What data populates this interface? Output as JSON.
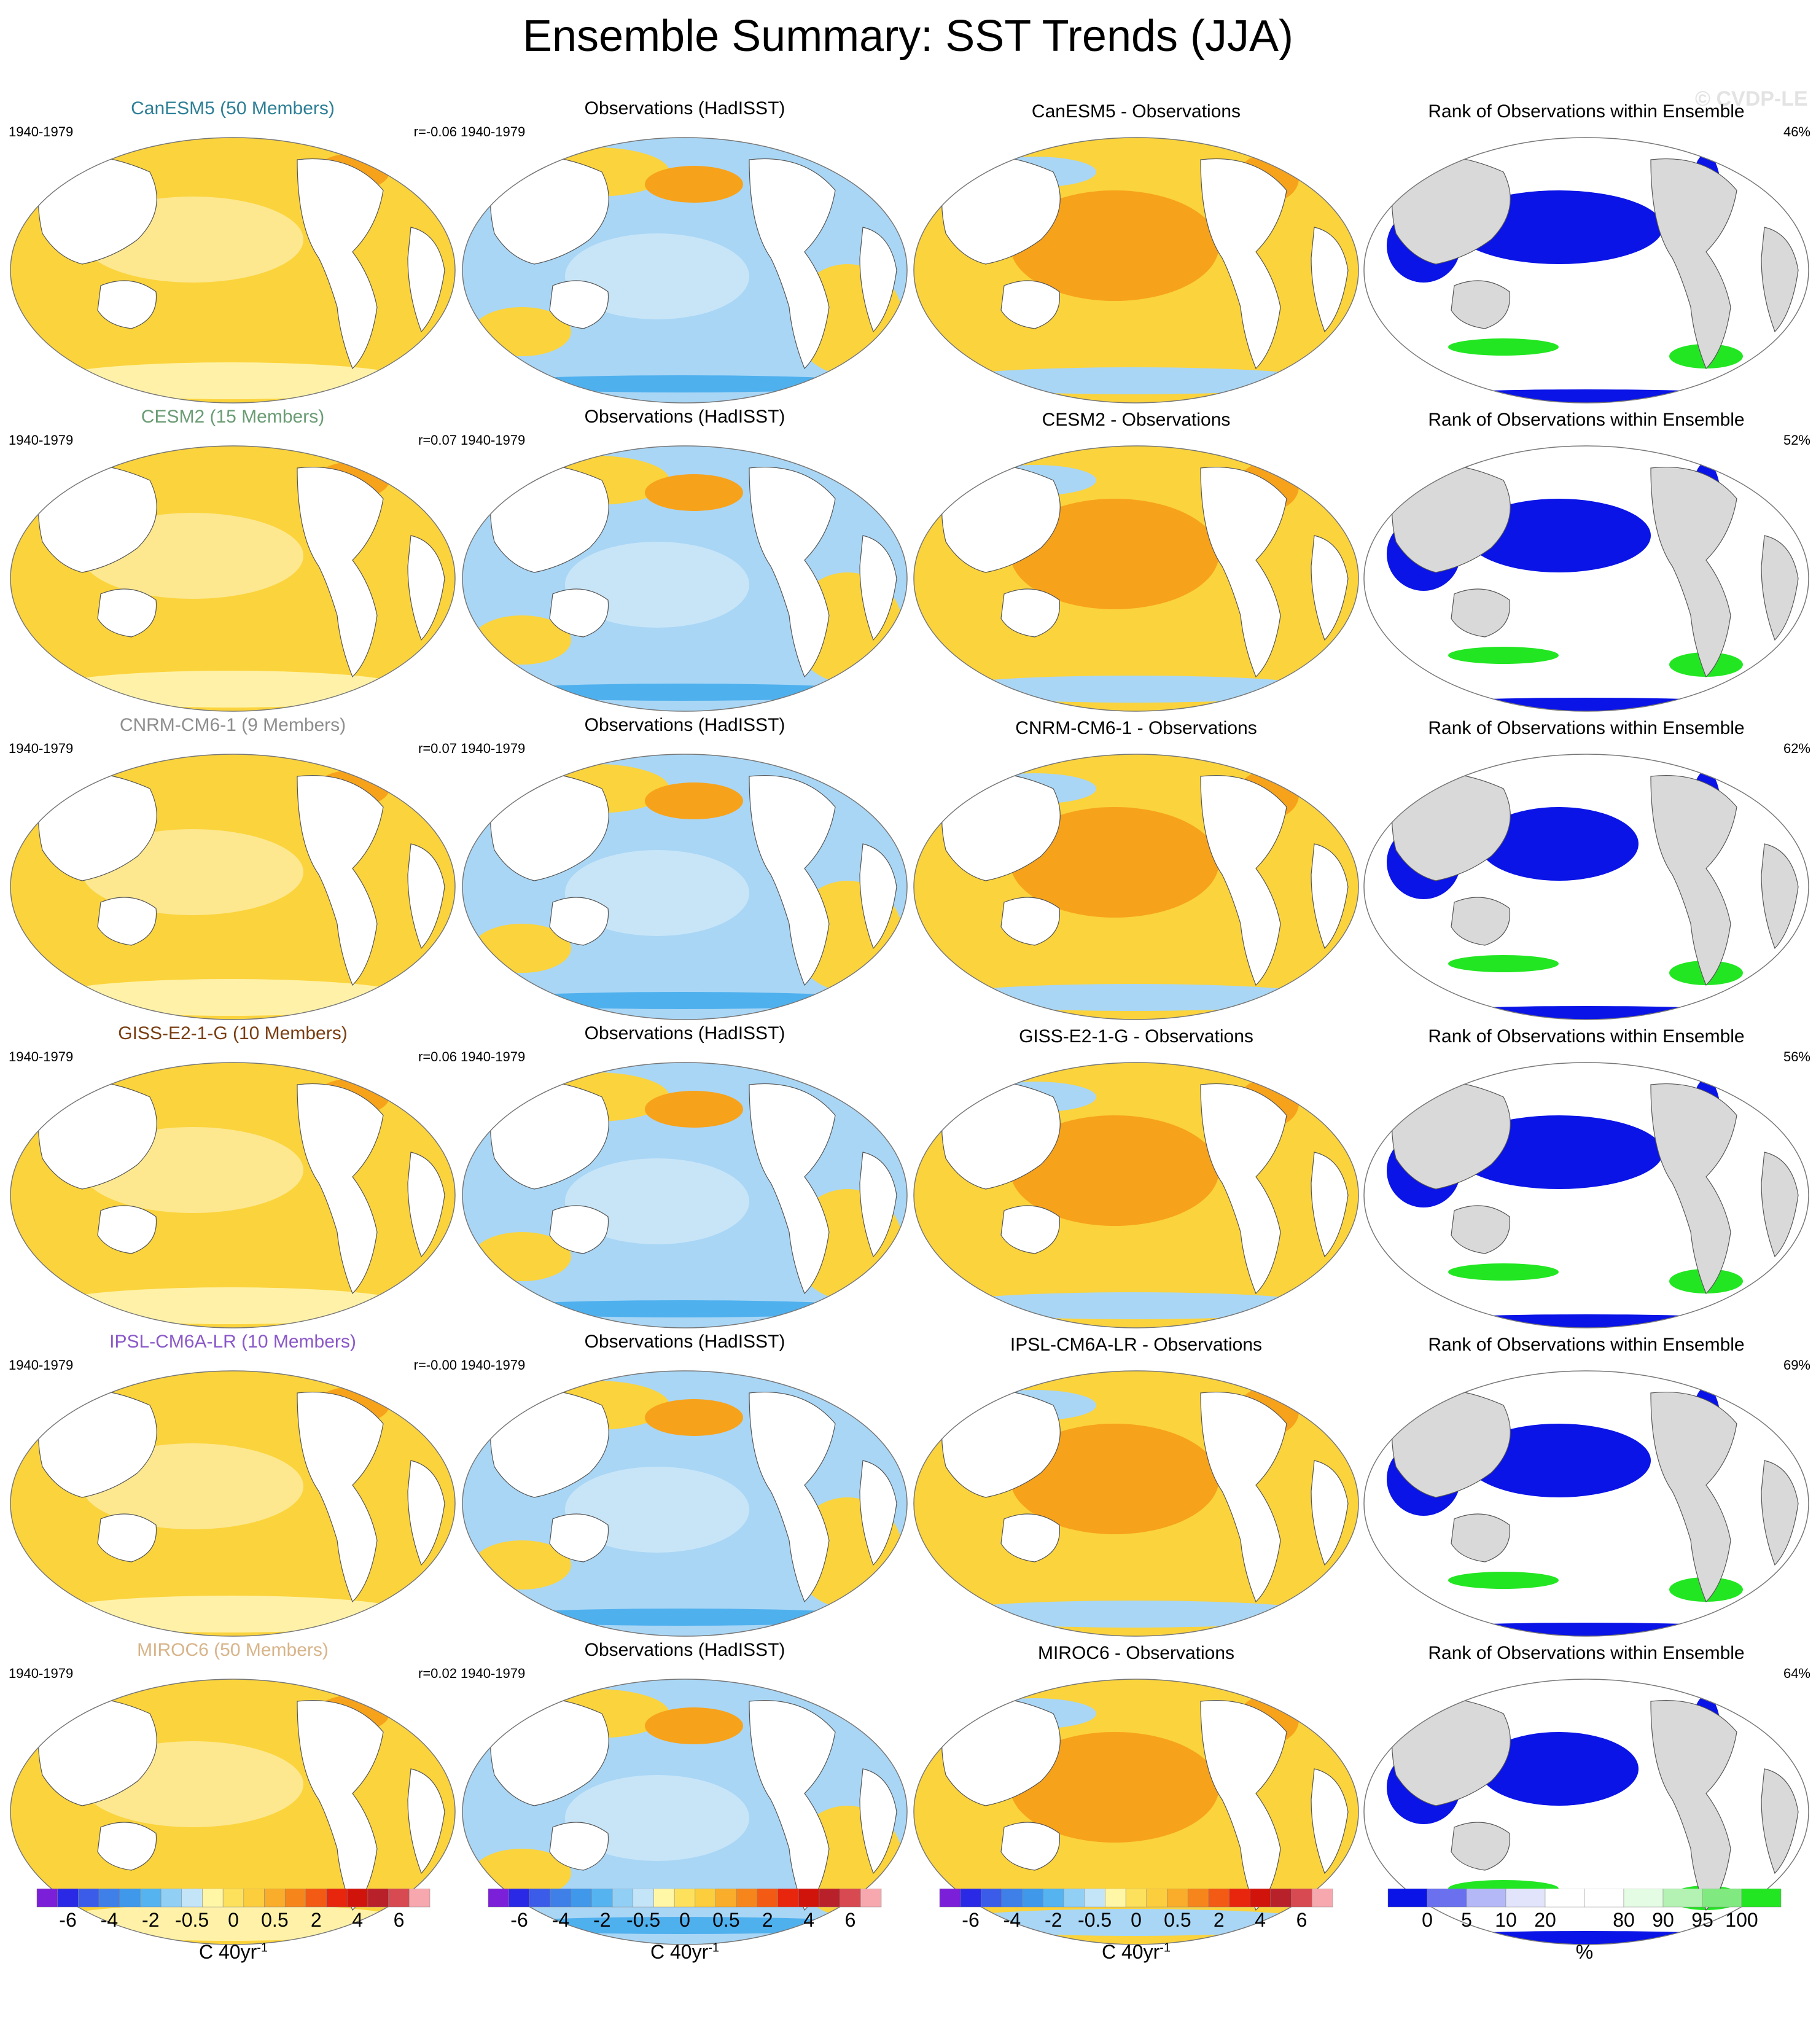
{
  "title": "Ensemble Summary: SST Trends (JJA)",
  "watermark": "© CVDP-LE",
  "period": "1940-1979",
  "colors": {
    "land_model": "#ffffff",
    "land_rank": "#d9d9d9",
    "warm": "#fbd33c",
    "warm_strong": "#f7a21b",
    "cool": "#a9d6f5",
    "cool_strong": "#4fb0ee",
    "rank_low": "#0a14e6",
    "rank_high": "#22e622"
  },
  "rows": [
    {
      "model": "CanESM5 (50 Members)",
      "model_color": "#2e7f96",
      "corr": "r=-0.06",
      "obs_title": "Observations (HadISST)",
      "diff_title": "CanESM5 - Observations",
      "rank_title": "Rank of Observations within Ensemble",
      "rank_pct": "46%"
    },
    {
      "model": "CESM2 (15 Members)",
      "model_color": "#6a9c74",
      "corr": "r=0.07",
      "obs_title": "Observations (HadISST)",
      "diff_title": "CESM2 - Observations",
      "rank_title": "Rank of Observations within Ensemble",
      "rank_pct": "52%"
    },
    {
      "model": "CNRM-CM6-1 (9 Members)",
      "model_color": "#8e8e8e",
      "corr": "r=0.07",
      "obs_title": "Observations (HadISST)",
      "diff_title": "CNRM-CM6-1 - Observations",
      "rank_title": "Rank of Observations within Ensemble",
      "rank_pct": "62%"
    },
    {
      "model": "GISS-E2-1-G (10 Members)",
      "model_color": "#7a3e12",
      "corr": "r=0.06",
      "obs_title": "Observations (HadISST)",
      "diff_title": "GISS-E2-1-G - Observations",
      "rank_title": "Rank of Observations within Ensemble",
      "rank_pct": "56%"
    },
    {
      "model": "IPSL-CM6A-LR (10 Members)",
      "model_color": "#8a58c8",
      "corr": "r=-0.00",
      "obs_title": "Observations (HadISST)",
      "diff_title": "IPSL-CM6A-LR - Observations",
      "rank_title": "Rank of Observations within Ensemble",
      "rank_pct": "69%"
    },
    {
      "model": "MIROC6 (50 Members)",
      "model_color": "#d8b48a",
      "corr": "r=0.02",
      "obs_title": "Observations (HadISST)",
      "diff_title": "MIROC6 - Observations",
      "rank_title": "Rank of Observations within Ensemble",
      "rank_pct": "64%"
    }
  ],
  "trend_colorbar": {
    "colors": [
      "#7b20d8",
      "#2a2ae6",
      "#3a5ce8",
      "#3f7fe8",
      "#3f98ea",
      "#55b3f0",
      "#92cff4",
      "#c4e4f8",
      "#fff6a6",
      "#fde15c",
      "#fccd3c",
      "#f9ad2a",
      "#f6861c",
      "#f35a14",
      "#e8260e",
      "#d0140c",
      "#b8202a",
      "#d84a52",
      "#f6a8ae"
    ],
    "labels": [
      "-6",
      "-4",
      "-2",
      "-0.5",
      "0",
      "0.5",
      "2",
      "4",
      "6"
    ],
    "unit": "C 40yr",
    "unit_exp": "-1"
  },
  "rank_colorbar": {
    "colors": [
      "#0a14e6",
      "#6a70ee",
      "#b4b8f6",
      "#e2e4fb",
      "#ffffff",
      "#ffffff",
      "#e4fbe4",
      "#b4f2b4",
      "#80ea80",
      "#22e622"
    ],
    "labels": [
      "0",
      "5",
      "10",
      "20",
      "80",
      "90",
      "95",
      "100"
    ],
    "unit": "%"
  }
}
